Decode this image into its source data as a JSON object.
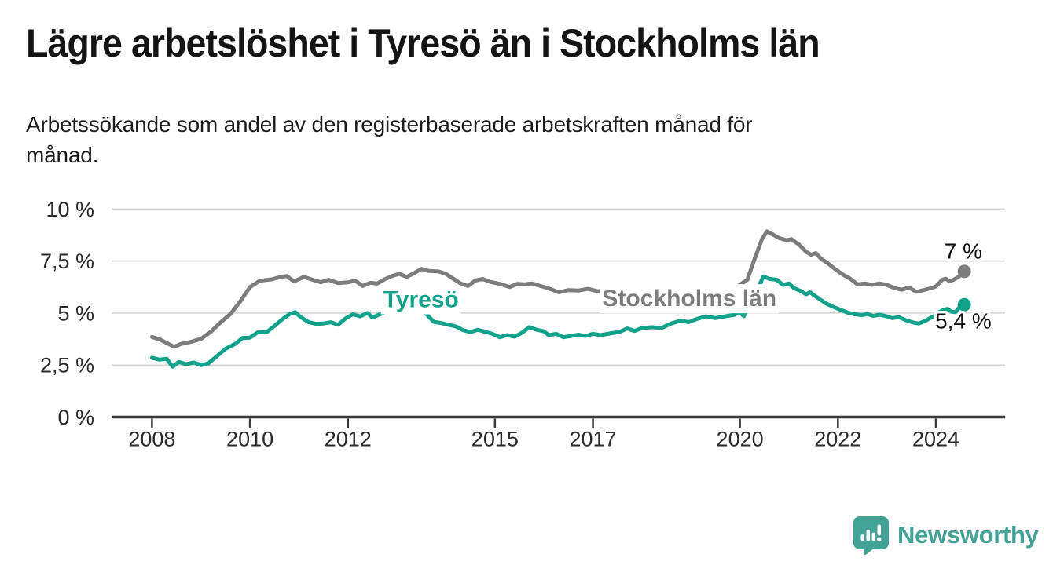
{
  "header": {
    "title": "Lägre arbetslöshet i Tyresö än i Stockholms län",
    "subtitle_lines": [
      "Arbetssökande som andel av den registerbaserade arbetskraften månad för",
      "månad."
    ]
  },
  "branding": {
    "logo_text": "Newsworthy",
    "logo_color": "#43a296",
    "logo_icon": "speech-bubble-bar-chart-icon"
  },
  "chart_data": {
    "type": "line",
    "unit": "percent",
    "x_axis": {
      "ticks": [
        2008,
        2010,
        2012,
        2015,
        2017,
        2020,
        2022,
        2024
      ],
      "tick_labels": [
        "2008",
        "2010",
        "2012",
        "2015",
        "2017",
        "2020",
        "2022",
        "2024"
      ],
      "start_year": 2008.0,
      "end_year": 2024.58
    },
    "y_axis": {
      "ticks": [
        0,
        2.5,
        5,
        7.5,
        10
      ],
      "tick_labels": [
        "0 %",
        "2,5 %",
        "5 %",
        "7,5 %",
        "10 %"
      ],
      "range": [
        0,
        10
      ],
      "grid": true
    },
    "series": [
      {
        "name": "Stockholms län",
        "color": "#7c7c7c",
        "label": {
          "text": "Stockholms län",
          "year": 2017.19,
          "value": 5.33
        },
        "end_label": {
          "text": "7 %",
          "year": 2024.56,
          "value": 7.62
        },
        "latest_value": 7.0,
        "points": [
          [
            2008.0,
            3.85
          ],
          [
            2008.17,
            3.72
          ],
          [
            2008.33,
            3.52
          ],
          [
            2008.45,
            3.38
          ],
          [
            2008.6,
            3.52
          ],
          [
            2008.8,
            3.62
          ],
          [
            2009.0,
            3.76
          ],
          [
            2009.2,
            4.1
          ],
          [
            2009.4,
            4.55
          ],
          [
            2009.6,
            4.95
          ],
          [
            2009.8,
            5.55
          ],
          [
            2010.0,
            6.25
          ],
          [
            2010.2,
            6.55
          ],
          [
            2010.45,
            6.62
          ],
          [
            2010.6,
            6.72
          ],
          [
            2010.75,
            6.78
          ],
          [
            2010.9,
            6.52
          ],
          [
            2011.1,
            6.74
          ],
          [
            2011.3,
            6.58
          ],
          [
            2011.45,
            6.48
          ],
          [
            2011.6,
            6.6
          ],
          [
            2011.8,
            6.44
          ],
          [
            2012.0,
            6.48
          ],
          [
            2012.15,
            6.55
          ],
          [
            2012.3,
            6.3
          ],
          [
            2012.45,
            6.45
          ],
          [
            2012.6,
            6.42
          ],
          [
            2012.75,
            6.62
          ],
          [
            2012.9,
            6.78
          ],
          [
            2013.05,
            6.88
          ],
          [
            2013.2,
            6.74
          ],
          [
            2013.35,
            6.92
          ],
          [
            2013.5,
            7.12
          ],
          [
            2013.65,
            7.02
          ],
          [
            2013.85,
            7.0
          ],
          [
            2014.0,
            6.88
          ],
          [
            2014.15,
            6.65
          ],
          [
            2014.3,
            6.42
          ],
          [
            2014.45,
            6.3
          ],
          [
            2014.6,
            6.56
          ],
          [
            2014.75,
            6.64
          ],
          [
            2014.9,
            6.5
          ],
          [
            2015.1,
            6.4
          ],
          [
            2015.3,
            6.25
          ],
          [
            2015.45,
            6.4
          ],
          [
            2015.6,
            6.38
          ],
          [
            2015.75,
            6.42
          ],
          [
            2015.9,
            6.32
          ],
          [
            2016.1,
            6.18
          ],
          [
            2016.3,
            6.0
          ],
          [
            2016.5,
            6.1
          ],
          [
            2016.7,
            6.08
          ],
          [
            2016.9,
            6.16
          ],
          [
            2017.1,
            6.04
          ],
          [
            2017.3,
            6.14
          ],
          [
            2017.6,
            6.2
          ],
          [
            2017.9,
            6.16
          ],
          [
            2018.2,
            6.2
          ],
          [
            2018.5,
            6.15
          ],
          [
            2018.8,
            6.12
          ],
          [
            2019.1,
            6.14
          ],
          [
            2019.4,
            6.18
          ],
          [
            2019.7,
            6.2
          ],
          [
            2019.95,
            6.28
          ],
          [
            2020.15,
            6.6
          ],
          [
            2020.3,
            7.6
          ],
          [
            2020.45,
            8.55
          ],
          [
            2020.55,
            8.92
          ],
          [
            2020.65,
            8.8
          ],
          [
            2020.8,
            8.6
          ],
          [
            2020.95,
            8.5
          ],
          [
            2021.05,
            8.55
          ],
          [
            2021.2,
            8.3
          ],
          [
            2021.35,
            7.95
          ],
          [
            2021.45,
            7.8
          ],
          [
            2021.55,
            7.88
          ],
          [
            2021.65,
            7.62
          ],
          [
            2021.8,
            7.38
          ],
          [
            2021.95,
            7.1
          ],
          [
            2022.1,
            6.85
          ],
          [
            2022.25,
            6.65
          ],
          [
            2022.4,
            6.38
          ],
          [
            2022.55,
            6.42
          ],
          [
            2022.7,
            6.35
          ],
          [
            2022.85,
            6.42
          ],
          [
            2023.0,
            6.35
          ],
          [
            2023.15,
            6.2
          ],
          [
            2023.3,
            6.12
          ],
          [
            2023.45,
            6.22
          ],
          [
            2023.6,
            6.02
          ],
          [
            2023.75,
            6.1
          ],
          [
            2023.9,
            6.2
          ],
          [
            2024.0,
            6.28
          ],
          [
            2024.13,
            6.6
          ],
          [
            2024.2,
            6.65
          ],
          [
            2024.28,
            6.52
          ],
          [
            2024.36,
            6.6
          ],
          [
            2024.45,
            6.72
          ],
          [
            2024.52,
            6.88
          ],
          [
            2024.58,
            7.0
          ]
        ]
      },
      {
        "name": "Tyresö",
        "color": "#12a28b",
        "label": {
          "text": "Tyresö",
          "year": 2012.72,
          "value": 5.28
        },
        "end_label": {
          "text": "5,4 %",
          "year": 2024.56,
          "value": 4.26
        },
        "latest_value": 5.4,
        "points": [
          [
            2008.0,
            2.85
          ],
          [
            2008.15,
            2.76
          ],
          [
            2008.3,
            2.8
          ],
          [
            2008.42,
            2.42
          ],
          [
            2008.55,
            2.65
          ],
          [
            2008.7,
            2.54
          ],
          [
            2008.85,
            2.62
          ],
          [
            2009.0,
            2.5
          ],
          [
            2009.15,
            2.58
          ],
          [
            2009.3,
            2.88
          ],
          [
            2009.5,
            3.28
          ],
          [
            2009.7,
            3.52
          ],
          [
            2009.85,
            3.8
          ],
          [
            2010.0,
            3.82
          ],
          [
            2010.15,
            4.06
          ],
          [
            2010.35,
            4.1
          ],
          [
            2010.5,
            4.38
          ],
          [
            2010.65,
            4.68
          ],
          [
            2010.8,
            4.94
          ],
          [
            2010.92,
            5.04
          ],
          [
            2011.05,
            4.78
          ],
          [
            2011.2,
            4.56
          ],
          [
            2011.35,
            4.48
          ],
          [
            2011.5,
            4.5
          ],
          [
            2011.65,
            4.56
          ],
          [
            2011.8,
            4.44
          ],
          [
            2011.95,
            4.74
          ],
          [
            2012.1,
            4.94
          ],
          [
            2012.25,
            4.84
          ],
          [
            2012.4,
            5.0
          ],
          [
            2012.5,
            4.78
          ],
          [
            2012.65,
            4.94
          ],
          [
            2012.8,
            5.08
          ],
          [
            2012.95,
            5.24
          ],
          [
            2013.1,
            5.2
          ],
          [
            2013.25,
            5.32
          ],
          [
            2013.4,
            5.26
          ],
          [
            2013.6,
            4.95
          ],
          [
            2013.75,
            4.58
          ],
          [
            2013.9,
            4.52
          ],
          [
            2014.05,
            4.44
          ],
          [
            2014.2,
            4.36
          ],
          [
            2014.35,
            4.18
          ],
          [
            2014.5,
            4.08
          ],
          [
            2014.65,
            4.2
          ],
          [
            2014.8,
            4.1
          ],
          [
            2014.95,
            4.0
          ],
          [
            2015.1,
            3.84
          ],
          [
            2015.25,
            3.94
          ],
          [
            2015.4,
            3.86
          ],
          [
            2015.55,
            4.05
          ],
          [
            2015.7,
            4.32
          ],
          [
            2015.85,
            4.2
          ],
          [
            2016.0,
            4.12
          ],
          [
            2016.1,
            3.94
          ],
          [
            2016.25,
            4.0
          ],
          [
            2016.4,
            3.84
          ],
          [
            2016.55,
            3.9
          ],
          [
            2016.7,
            3.96
          ],
          [
            2016.85,
            3.9
          ],
          [
            2017.0,
            4.0
          ],
          [
            2017.15,
            3.94
          ],
          [
            2017.35,
            4.02
          ],
          [
            2017.55,
            4.1
          ],
          [
            2017.7,
            4.26
          ],
          [
            2017.85,
            4.14
          ],
          [
            2018.0,
            4.28
          ],
          [
            2018.2,
            4.32
          ],
          [
            2018.4,
            4.28
          ],
          [
            2018.6,
            4.5
          ],
          [
            2018.8,
            4.64
          ],
          [
            2018.95,
            4.56
          ],
          [
            2019.1,
            4.7
          ],
          [
            2019.3,
            4.84
          ],
          [
            2019.5,
            4.76
          ],
          [
            2019.7,
            4.84
          ],
          [
            2019.9,
            4.92
          ],
          [
            2019.98,
            5.06
          ],
          [
            2020.08,
            4.85
          ],
          [
            2020.2,
            5.4
          ],
          [
            2020.35,
            6.1
          ],
          [
            2020.48,
            6.76
          ],
          [
            2020.6,
            6.64
          ],
          [
            2020.75,
            6.6
          ],
          [
            2020.88,
            6.35
          ],
          [
            2021.0,
            6.42
          ],
          [
            2021.1,
            6.2
          ],
          [
            2021.25,
            6.05
          ],
          [
            2021.35,
            5.9
          ],
          [
            2021.43,
            6.0
          ],
          [
            2021.52,
            5.84
          ],
          [
            2021.62,
            5.68
          ],
          [
            2021.77,
            5.44
          ],
          [
            2021.9,
            5.3
          ],
          [
            2022.05,
            5.16
          ],
          [
            2022.2,
            5.02
          ],
          [
            2022.35,
            4.94
          ],
          [
            2022.5,
            4.9
          ],
          [
            2022.6,
            4.96
          ],
          [
            2022.72,
            4.86
          ],
          [
            2022.85,
            4.92
          ],
          [
            2023.0,
            4.84
          ],
          [
            2023.1,
            4.76
          ],
          [
            2023.25,
            4.8
          ],
          [
            2023.4,
            4.64
          ],
          [
            2023.55,
            4.54
          ],
          [
            2023.65,
            4.5
          ],
          [
            2023.78,
            4.62
          ],
          [
            2023.9,
            4.78
          ],
          [
            2024.0,
            4.9
          ],
          [
            2024.08,
            5.06
          ],
          [
            2024.16,
            5.16
          ],
          [
            2024.24,
            5.2
          ],
          [
            2024.32,
            5.06
          ],
          [
            2024.4,
            5.04
          ],
          [
            2024.48,
            5.28
          ],
          [
            2024.58,
            5.4
          ]
        ]
      }
    ]
  }
}
